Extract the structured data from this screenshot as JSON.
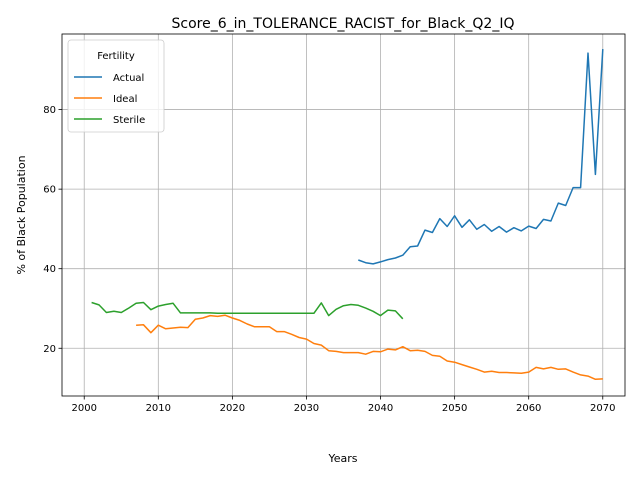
{
  "chart_data": {
    "type": "line",
    "title": "Score_6_in_TOLERANCE_RACIST_for_Black_Q2_IQ",
    "xlabel": "Years",
    "ylabel": "% of Black Population",
    "xlim": [
      1997,
      2073
    ],
    "ylim": [
      8,
      99
    ],
    "xticks": [
      2000,
      2010,
      2020,
      2030,
      2040,
      2050,
      2060,
      2070
    ],
    "yticks": [
      20,
      40,
      60,
      80
    ],
    "grid": true,
    "legend": {
      "title": "Fertility",
      "placement": "top-left"
    },
    "series": [
      {
        "name": "Actual",
        "color": "#1f77b4",
        "x": [
          2037,
          2038,
          2039,
          2040,
          2041,
          2042,
          2043,
          2044,
          2045,
          2046,
          2047,
          2048,
          2049,
          2050,
          2051,
          2052,
          2053,
          2054,
          2055,
          2056,
          2057,
          2058,
          2059,
          2060,
          2061,
          2062,
          2063,
          2064,
          2065,
          2066,
          2067,
          2068,
          2069,
          2070
        ],
        "y": [
          42.2,
          41.5,
          41.2,
          41.7,
          42.3,
          42.7,
          43.4,
          45.5,
          45.7,
          49.7,
          49.1,
          52.6,
          50.6,
          53.3,
          50.4,
          52.3,
          49.9,
          51.1,
          49.4,
          50.6,
          49.2,
          50.3,
          49.5,
          50.7,
          50.1,
          52.4,
          52.0,
          56.5,
          55.9,
          60.4,
          60.4,
          94.2,
          63.7,
          95.2
        ]
      },
      {
        "name": "Ideal",
        "color": "#ff7f0e",
        "x": [
          2007,
          2008,
          2009,
          2010,
          2011,
          2012,
          2013,
          2014,
          2015,
          2016,
          2017,
          2018,
          2019,
          2020,
          2021,
          2022,
          2023,
          2024,
          2025,
          2026,
          2027,
          2028,
          2029,
          2030,
          2031,
          2032,
          2033,
          2034,
          2035,
          2036,
          2037,
          2038,
          2039,
          2040,
          2041,
          2042,
          2043,
          2044,
          2045,
          2046,
          2047,
          2048,
          2049,
          2050,
          2051,
          2052,
          2053,
          2054,
          2055,
          2056,
          2057,
          2058,
          2059,
          2060,
          2061,
          2062,
          2063,
          2064,
          2065,
          2066,
          2067,
          2068,
          2069,
          2070
        ],
        "y": [
          25.8,
          25.9,
          23.9,
          25.8,
          24.9,
          25.1,
          25.3,
          25.2,
          27.3,
          27.6,
          28.2,
          28.0,
          28.3,
          27.6,
          27.0,
          26.1,
          25.4,
          25.4,
          25.4,
          24.2,
          24.2,
          23.5,
          22.7,
          22.3,
          21.2,
          20.8,
          19.4,
          19.2,
          18.9,
          18.9,
          18.9,
          18.5,
          19.2,
          19.1,
          19.8,
          19.6,
          20.4,
          19.4,
          19.5,
          19.2,
          18.2,
          18.0,
          16.8,
          16.5,
          15.9,
          15.3,
          14.7,
          14.0,
          14.2,
          13.9,
          13.9,
          13.8,
          13.7,
          14.0,
          15.2,
          14.8,
          15.2,
          14.7,
          14.8,
          14.0,
          13.3,
          13.0,
          12.2,
          12.3
        ]
      },
      {
        "name": "Sterile",
        "color": "#2ca02c",
        "x": [
          2001,
          2002,
          2003,
          2004,
          2005,
          2006,
          2007,
          2008,
          2009,
          2010,
          2011,
          2012,
          2013,
          2014,
          2015,
          2016,
          2017,
          2018,
          2019,
          2020,
          2021,
          2022,
          2023,
          2024,
          2025,
          2026,
          2027,
          2028,
          2029,
          2030,
          2031,
          2032,
          2033,
          2034,
          2035,
          2036,
          2037,
          2038,
          2039,
          2040,
          2041,
          2042,
          2043
        ],
        "y": [
          31.5,
          30.9,
          29.0,
          29.3,
          29.0,
          30.1,
          31.3,
          31.5,
          29.7,
          30.6,
          31.0,
          31.3,
          28.9,
          28.9,
          28.9,
          28.9,
          28.9,
          28.8,
          28.8,
          28.8,
          28.8,
          28.8,
          28.8,
          28.8,
          28.8,
          28.8,
          28.8,
          28.8,
          28.8,
          28.8,
          28.8,
          31.4,
          28.2,
          29.8,
          30.7,
          31.0,
          30.8,
          30.1,
          29.3,
          28.2,
          29.6,
          29.4,
          27.4
        ]
      }
    ]
  }
}
